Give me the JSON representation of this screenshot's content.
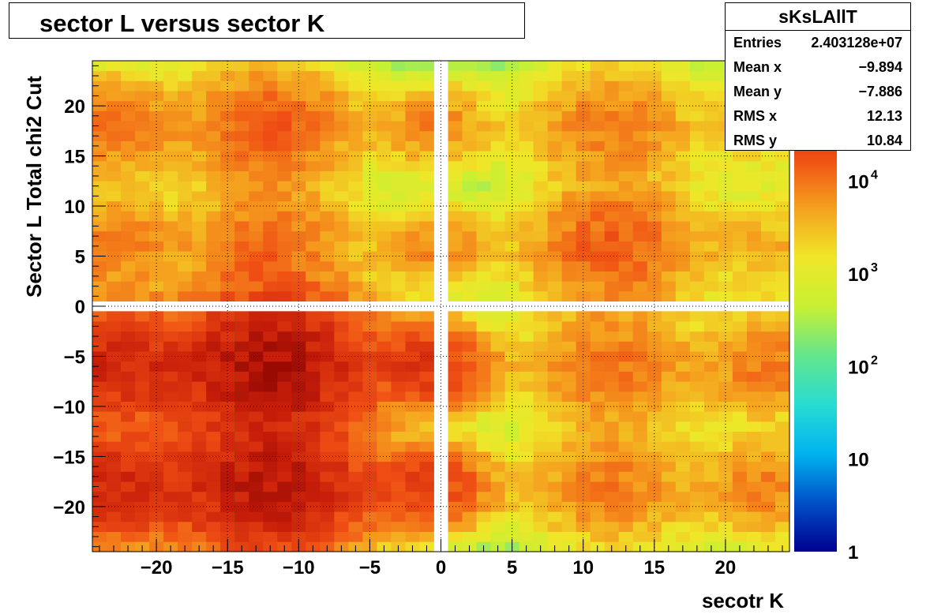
{
  "title": "sector L versus sector K",
  "stats": {
    "name": "sKsLAllT",
    "rows": [
      {
        "key": "Entries",
        "value": "2.403128e+07"
      },
      {
        "key": "Mean x",
        "value": "−9.894"
      },
      {
        "key": "Mean y",
        "value": "−7.886"
      },
      {
        "key": "RMS x",
        "value": "12.13"
      },
      {
        "key": "RMS y",
        "value": "10.84"
      }
    ]
  },
  "chart_data": {
    "type": "heatmap",
    "title": "sector L versus sector K",
    "xlabel": "secotr K",
    "ylabel": "Sector L  Total chi2 Cut",
    "xlim": [
      -24.5,
      24.5
    ],
    "ylim": [
      -24.5,
      24.5
    ],
    "zscale": "log",
    "zlim": [
      1,
      200000
    ],
    "grid": true,
    "x_ticks": [
      "−20",
      "−15",
      "−10",
      "−5",
      "0",
      "5",
      "10",
      "15",
      "20"
    ],
    "x_tick_values": [
      -20,
      -15,
      -10,
      -5,
      0,
      5,
      10,
      15,
      20
    ],
    "y_ticks": [
      "20",
      "15",
      "10",
      "5",
      "0",
      "−5",
      "−10",
      "−15",
      "−20"
    ],
    "y_tick_values": [
      20,
      15,
      10,
      5,
      0,
      -5,
      -10,
      -15,
      -20
    ],
    "colorbar_labels": [
      "1",
      "10",
      "10",
      "10",
      "10"
    ],
    "colorbar_exponents": [
      "",
      "",
      "2",
      "3",
      "4"
    ],
    "colorbar_values": [
      1,
      10,
      100,
      1000,
      10000
    ],
    "blobs": [
      {
        "x": -12,
        "y": -6,
        "peak": 100000,
        "width": 3.8
      },
      {
        "x": -12,
        "y": -18,
        "peak": 80000,
        "width": 3.8
      },
      {
        "x": -23,
        "y": -6,
        "peak": 50000,
        "width": 3.2
      },
      {
        "x": -23,
        "y": -18,
        "peak": 45000,
        "width": 3.2
      },
      {
        "x": -1,
        "y": -6,
        "peak": 30000,
        "width": 2.4
      },
      {
        "x": -1,
        "y": -18,
        "peak": 25000,
        "width": 2.4
      },
      {
        "x": -12,
        "y": 18,
        "peak": 15000,
        "width": 3.5
      },
      {
        "x": -12,
        "y": 6,
        "peak": 12000,
        "width": 3.5
      },
      {
        "x": -23,
        "y": 18,
        "peak": 10000,
        "width": 3.0
      },
      {
        "x": -23,
        "y": 6,
        "peak": 9000,
        "width": 3.0
      },
      {
        "x": 12,
        "y": 6,
        "peak": 15000,
        "width": 3.5
      },
      {
        "x": 12,
        "y": 18,
        "peak": 9000,
        "width": 3.5
      },
      {
        "x": 12,
        "y": -6,
        "peak": 10000,
        "width": 3.5
      },
      {
        "x": 12,
        "y": -18,
        "peak": 9000,
        "width": 3.5
      },
      {
        "x": 23,
        "y": -6,
        "peak": 9000,
        "width": 3.0
      },
      {
        "x": 23,
        "y": -18,
        "peak": 8000,
        "width": 3.0
      },
      {
        "x": 23,
        "y": 6,
        "peak": 4000,
        "width": 3.0
      },
      {
        "x": 23,
        "y": 18,
        "peak": 3000,
        "width": 3.0
      },
      {
        "x": 1,
        "y": 6,
        "peak": 3000,
        "width": 2.4
      },
      {
        "x": 1,
        "y": 18,
        "peak": 2500,
        "width": 2.4
      },
      {
        "x": 1,
        "y": -6,
        "peak": 2500,
        "width": 2.4
      },
      {
        "x": 1,
        "y": -18,
        "peak": 2500,
        "width": 2.4
      },
      {
        "x": -1,
        "y": 18,
        "peak": 6000,
        "width": 2.4
      },
      {
        "x": -1,
        "y": 6,
        "peak": 5000,
        "width": 2.4
      }
    ],
    "empty_bins": {
      "x": [
        -0.5
      ],
      "y": [
        0.5
      ]
    }
  },
  "colors": {
    "palette": [
      "#00008f",
      "#0050c8",
      "#00b4f0",
      "#28dcd2",
      "#64e68c",
      "#c8f032",
      "#f0e628",
      "#f5a01e",
      "#f05014",
      "#c81e0a",
      "#820000"
    ]
  }
}
